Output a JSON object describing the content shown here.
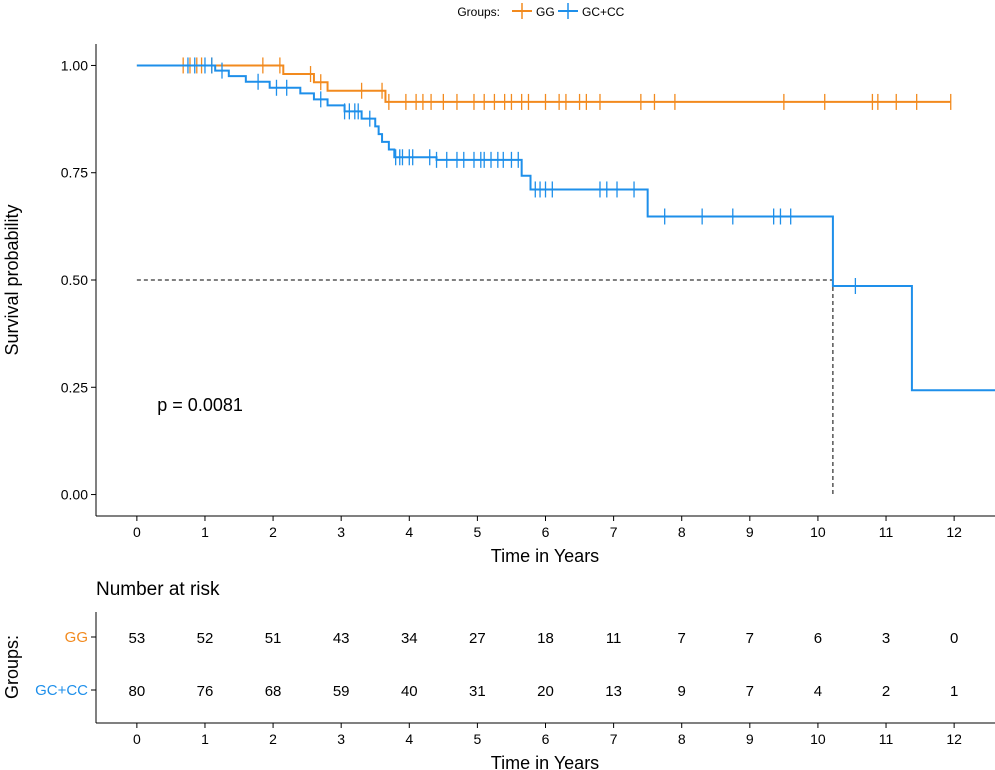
{
  "legend": {
    "title": "Groups:",
    "items": [
      {
        "label": "GG",
        "color": "#F28A1E"
      },
      {
        "label": "GC+CC",
        "color": "#1E8FEA"
      }
    ]
  },
  "chart_data": {
    "type": "line",
    "subtype": "kaplan-meier",
    "xlabel": "Time in Years",
    "ylabel": "Survival probability",
    "xlim": [
      -0.6,
      12.6
    ],
    "ylim": [
      -0.05,
      1.05
    ],
    "xticks": [
      0,
      1,
      2,
      3,
      4,
      5,
      6,
      7,
      8,
      9,
      10,
      11,
      12
    ],
    "yticks": [
      "0.00",
      "0.25",
      "0.50",
      "0.75",
      "1.00"
    ],
    "ytick_values": [
      0,
      0.25,
      0.5,
      0.75,
      1.0
    ],
    "grid": false,
    "legend_position": "top",
    "annotation": "p = 0.0081",
    "annotation_pos": [
      0.3,
      0.195
    ],
    "median_line": {
      "y": 0.5,
      "x": 10.22
    },
    "series": [
      {
        "name": "GG",
        "color": "#F28A1E",
        "steps": [
          [
            0,
            1.0
          ],
          [
            2.15,
            0.98
          ],
          [
            2.6,
            0.961
          ],
          [
            2.8,
            0.941
          ],
          [
            3.65,
            0.915
          ],
          [
            11.95,
            0.915
          ]
        ],
        "censors": [
          [
            0.68,
            1.0
          ],
          [
            0.78,
            1.0
          ],
          [
            0.88,
            1.0
          ],
          [
            0.95,
            1.0
          ],
          [
            1.1,
            1.0
          ],
          [
            1.85,
            1.0
          ],
          [
            2.1,
            1.0
          ],
          [
            2.55,
            0.98
          ],
          [
            2.7,
            0.961
          ],
          [
            3.3,
            0.941
          ],
          [
            3.6,
            0.941
          ],
          [
            3.7,
            0.915
          ],
          [
            3.95,
            0.915
          ],
          [
            4.1,
            0.915
          ],
          [
            4.2,
            0.915
          ],
          [
            4.32,
            0.915
          ],
          [
            4.5,
            0.915
          ],
          [
            4.7,
            0.915
          ],
          [
            4.95,
            0.915
          ],
          [
            5.1,
            0.915
          ],
          [
            5.25,
            0.915
          ],
          [
            5.4,
            0.915
          ],
          [
            5.5,
            0.915
          ],
          [
            5.65,
            0.915
          ],
          [
            5.75,
            0.915
          ],
          [
            6.0,
            0.915
          ],
          [
            6.2,
            0.915
          ],
          [
            6.3,
            0.915
          ],
          [
            6.5,
            0.915
          ],
          [
            6.6,
            0.915
          ],
          [
            6.8,
            0.915
          ],
          [
            7.4,
            0.915
          ],
          [
            7.6,
            0.915
          ],
          [
            7.9,
            0.915
          ],
          [
            9.5,
            0.915
          ],
          [
            10.1,
            0.915
          ],
          [
            10.8,
            0.915
          ],
          [
            10.88,
            0.915
          ],
          [
            11.15,
            0.915
          ],
          [
            11.45,
            0.915
          ],
          [
            11.95,
            0.915
          ]
        ]
      },
      {
        "name": "GC+CC",
        "color": "#1E8FEA",
        "steps": [
          [
            0,
            1.0
          ],
          [
            1.15,
            0.988
          ],
          [
            1.35,
            0.975
          ],
          [
            1.6,
            0.962
          ],
          [
            1.95,
            0.948
          ],
          [
            2.4,
            0.935
          ],
          [
            2.6,
            0.921
          ],
          [
            2.8,
            0.907
          ],
          [
            3.05,
            0.893
          ],
          [
            3.3,
            0.876
          ],
          [
            3.5,
            0.858
          ],
          [
            3.55,
            0.84
          ],
          [
            3.6,
            0.822
          ],
          [
            3.7,
            0.804
          ],
          [
            3.78,
            0.786
          ],
          [
            4.4,
            0.78
          ],
          [
            5.65,
            0.743
          ],
          [
            5.78,
            0.711
          ],
          [
            7.5,
            0.648
          ],
          [
            10.22,
            0.486
          ],
          [
            11.38,
            0.243
          ],
          [
            12.6,
            0.243
          ]
        ],
        "censors": [
          [
            0.75,
            1.0
          ],
          [
            0.85,
            1.0
          ],
          [
            1.0,
            1.0
          ],
          [
            1.1,
            1.0
          ],
          [
            1.25,
            0.988
          ],
          [
            1.78,
            0.962
          ],
          [
            2.05,
            0.948
          ],
          [
            2.2,
            0.948
          ],
          [
            2.7,
            0.921
          ],
          [
            3.05,
            0.893
          ],
          [
            3.12,
            0.893
          ],
          [
            3.2,
            0.893
          ],
          [
            3.25,
            0.893
          ],
          [
            3.42,
            0.876
          ],
          [
            3.8,
            0.786
          ],
          [
            3.86,
            0.786
          ],
          [
            3.9,
            0.786
          ],
          [
            4.0,
            0.786
          ],
          [
            4.05,
            0.786
          ],
          [
            4.3,
            0.786
          ],
          [
            4.4,
            0.78
          ],
          [
            4.55,
            0.78
          ],
          [
            4.7,
            0.78
          ],
          [
            4.8,
            0.78
          ],
          [
            4.95,
            0.78
          ],
          [
            5.05,
            0.78
          ],
          [
            5.1,
            0.78
          ],
          [
            5.2,
            0.78
          ],
          [
            5.3,
            0.78
          ],
          [
            5.38,
            0.78
          ],
          [
            5.5,
            0.78
          ],
          [
            5.6,
            0.78
          ],
          [
            5.85,
            0.711
          ],
          [
            5.92,
            0.711
          ],
          [
            6.0,
            0.711
          ],
          [
            6.1,
            0.711
          ],
          [
            6.8,
            0.711
          ],
          [
            6.9,
            0.711
          ],
          [
            7.05,
            0.711
          ],
          [
            7.3,
            0.711
          ],
          [
            7.75,
            0.648
          ],
          [
            8.3,
            0.648
          ],
          [
            8.75,
            0.648
          ],
          [
            9.35,
            0.648
          ],
          [
            9.45,
            0.648
          ],
          [
            9.6,
            0.648
          ],
          [
            10.55,
            0.486
          ]
        ]
      }
    ]
  },
  "risk_table": {
    "title": "Number at risk",
    "ylabel": "Groups:",
    "xlabel": "Time in Years",
    "xticks": [
      0,
      1,
      2,
      3,
      4,
      5,
      6,
      7,
      8,
      9,
      10,
      11,
      12
    ],
    "rows": [
      {
        "label": "GG",
        "color": "#F28A1E",
        "counts": [
          53,
          52,
          51,
          43,
          34,
          27,
          18,
          11,
          7,
          7,
          6,
          3,
          0
        ]
      },
      {
        "label": "GC+CC",
        "color": "#1E8FEA",
        "counts": [
          80,
          76,
          68,
          59,
          40,
          31,
          20,
          13,
          9,
          7,
          4,
          2,
          1
        ]
      }
    ]
  }
}
